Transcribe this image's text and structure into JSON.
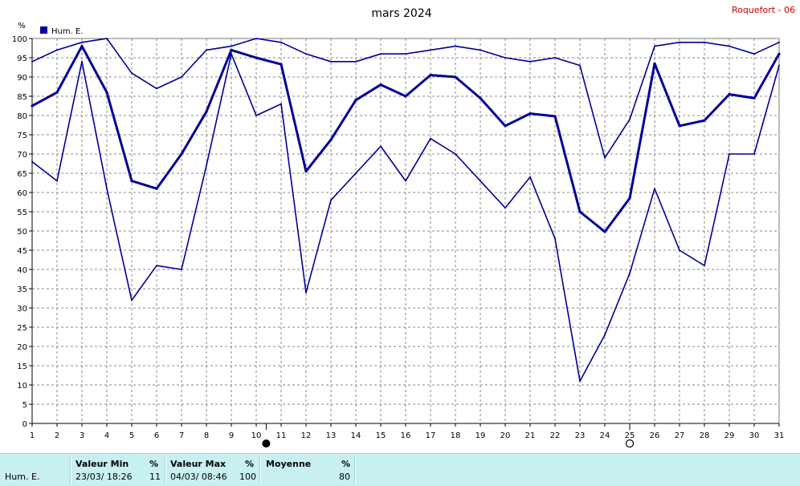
{
  "chart_data": {
    "type": "line",
    "title": "mars 2024",
    "station": "Roquefort - 06",
    "y_unit_label": "%",
    "ylim": [
      0,
      100
    ],
    "y_ticks": [
      0,
      5,
      10,
      15,
      20,
      25,
      30,
      35,
      40,
      45,
      50,
      55,
      60,
      65,
      70,
      75,
      80,
      85,
      90,
      95,
      100
    ],
    "x": [
      1,
      2,
      3,
      4,
      5,
      6,
      7,
      8,
      9,
      10,
      11,
      12,
      13,
      14,
      15,
      16,
      17,
      18,
      19,
      20,
      21,
      22,
      23,
      24,
      25,
      26,
      27,
      28,
      29,
      30,
      31
    ],
    "grid": true,
    "legend": {
      "position": "top-left",
      "label": "Hum. E.",
      "color": "#000099"
    },
    "moon_phases": [
      {
        "day": 10.4,
        "phase": "new-moon"
      },
      {
        "day": 25.0,
        "phase": "full-moon"
      }
    ],
    "series": [
      {
        "name": "Hum. E.",
        "role": "max",
        "color": "#000099",
        "values": [
          94,
          97,
          99,
          100,
          91,
          87,
          90,
          97,
          98,
          100,
          99,
          96,
          94,
          94,
          96,
          96,
          97,
          98,
          97,
          95,
          94,
          95,
          93,
          69,
          79,
          98,
          99,
          99,
          98,
          96,
          99
        ]
      },
      {
        "name": "Hum. E.",
        "role": "mean",
        "color": "#000099",
        "values": [
          82.5,
          86,
          98,
          86,
          63,
          61,
          70,
          81,
          97,
          95,
          93.3,
          65.5,
          73.7,
          84,
          88,
          85,
          90.5,
          90,
          84.5,
          77.3,
          80.5,
          79.8,
          55,
          49.8,
          58.5,
          93.5,
          77.3,
          78.7,
          85.5,
          84.5,
          96
        ]
      },
      {
        "name": "Hum. E.",
        "role": "min",
        "color": "#000099",
        "values": [
          68,
          63,
          94,
          61,
          32,
          41,
          40,
          67,
          96,
          80,
          83,
          34,
          58,
          65,
          72,
          63,
          74,
          70,
          63,
          56,
          64,
          48,
          11,
          23,
          39,
          61,
          45,
          41,
          70,
          70,
          93
        ]
      }
    ]
  },
  "footer": {
    "row_label": "Hum. E.",
    "min_header": "Valeur Min",
    "min_unit": "%",
    "min_date": "23/03/  18:26",
    "min_value": "11",
    "max_header": "Valeur Max",
    "max_unit": "%",
    "max_date": "04/03/  08:46",
    "max_value": "100",
    "mean_header": "Moyenne",
    "mean_unit": "%",
    "mean_value": "80"
  }
}
